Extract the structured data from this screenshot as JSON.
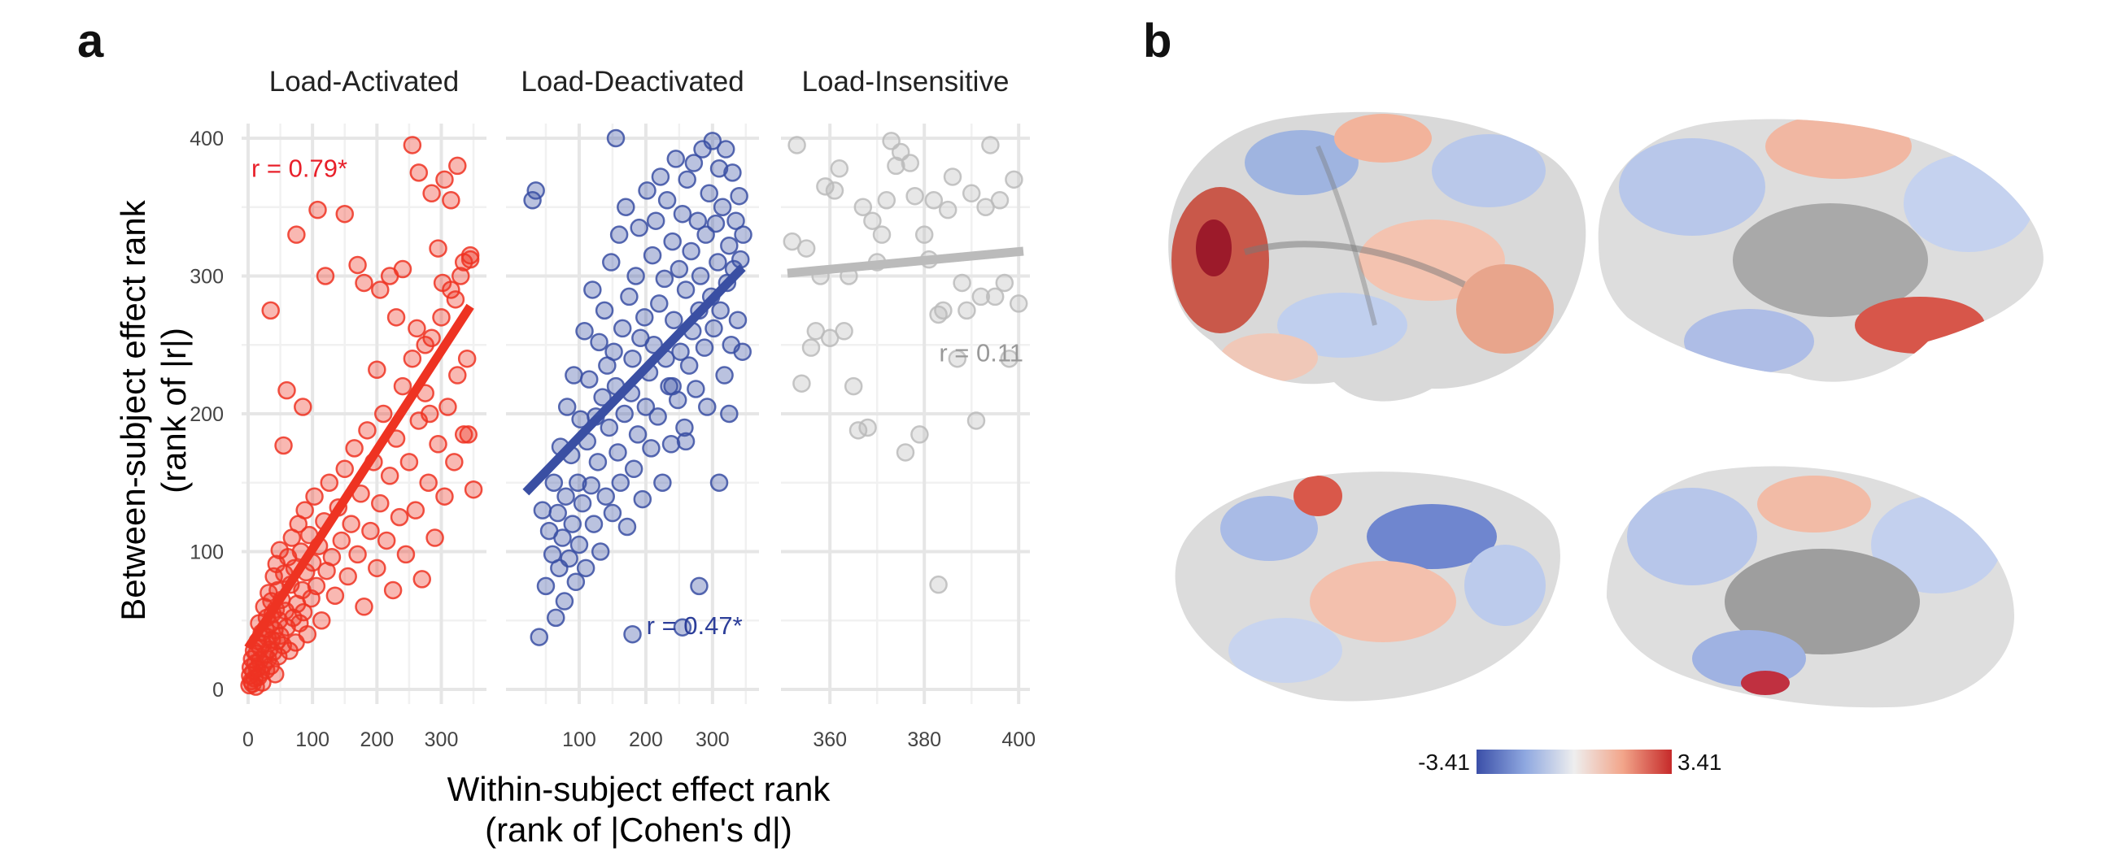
{
  "panel_a_label": "a",
  "panel_b_label": "b",
  "colors": {
    "activated": "#ee3322",
    "deactivated": "#3a4fa3",
    "insensitive": "#bbbbbb",
    "activated_text": "#e8202a",
    "deactivated_text": "#2c3e99",
    "insensitive_text": "#999999"
  },
  "chart_data": [
    {
      "type": "scatter",
      "title": "Load-Activated",
      "xlabel": "Within-subject effect rank\n(rank of |Cohen's d|)",
      "ylabel": "Between-subject effect rank\n(rank of |r|)",
      "xlim": [
        0,
        360
      ],
      "ylim": [
        0,
        400
      ],
      "xticks": [
        0,
        100,
        200,
        300
      ],
      "yticks": [
        0,
        100,
        200,
        300,
        400
      ],
      "annotation": "r = 0.79*",
      "fit": {
        "x": [
          0,
          345
        ],
        "y": [
          30,
          278
        ]
      },
      "points": [
        [
          2,
          3
        ],
        [
          3,
          10
        ],
        [
          4,
          16
        ],
        [
          5,
          6
        ],
        [
          6,
          22
        ],
        [
          7,
          4
        ],
        [
          8,
          13
        ],
        [
          9,
          28
        ],
        [
          10,
          8
        ],
        [
          11,
          19
        ],
        [
          12,
          2
        ],
        [
          13,
          26
        ],
        [
          14,
          15
        ],
        [
          15,
          35
        ],
        [
          16,
          9
        ],
        [
          17,
          48
        ],
        [
          18,
          21
        ],
        [
          19,
          30
        ],
        [
          20,
          12
        ],
        [
          21,
          41
        ],
        [
          22,
          5
        ],
        [
          23,
          33
        ],
        [
          24,
          18
        ],
        [
          25,
          60
        ],
        [
          26,
          25
        ],
        [
          27,
          44
        ],
        [
          28,
          14
        ],
        [
          29,
          52
        ],
        [
          30,
          38
        ],
        [
          31,
          22
        ],
        [
          32,
          70
        ],
        [
          33,
          29
        ],
        [
          34,
          47
        ],
        [
          35,
          17
        ],
        [
          36,
          64
        ],
        [
          37,
          36
        ],
        [
          38,
          55
        ],
        [
          39,
          27
        ],
        [
          40,
          82
        ],
        [
          41,
          43
        ],
        [
          42,
          11
        ],
        [
          43,
          58
        ],
        [
          44,
          91
        ],
        [
          45,
          35
        ],
        [
          46,
          72
        ],
        [
          47,
          24
        ],
        [
          48,
          50
        ],
        [
          49,
          101
        ],
        [
          50,
          39
        ],
        [
          52,
          65
        ],
        [
          54,
          32
        ],
        [
          56,
          84
        ],
        [
          58,
          57
        ],
        [
          60,
          45
        ],
        [
          62,
          96
        ],
        [
          64,
          28
        ],
        [
          66,
          76
        ],
        [
          68,
          110
        ],
        [
          70,
          52
        ],
        [
          72,
          88
        ],
        [
          74,
          34
        ],
        [
          76,
          62
        ],
        [
          78,
          120
        ],
        [
          80,
          48
        ],
        [
          82,
          100
        ],
        [
          84,
          72
        ],
        [
          86,
          56
        ],
        [
          88,
          130
        ],
        [
          90,
          85
        ],
        [
          92,
          40
        ],
        [
          95,
          112
        ],
        [
          98,
          66
        ],
        [
          100,
          92
        ],
        [
          103,
          140
        ],
        [
          106,
          75
        ],
        [
          110,
          104
        ],
        [
          114,
          50
        ],
        [
          118,
          122
        ],
        [
          122,
          86
        ],
        [
          126,
          150
        ],
        [
          130,
          96
        ],
        [
          135,
          68
        ],
        [
          140,
          132
        ],
        [
          145,
          108
        ],
        [
          150,
          160
        ],
        [
          155,
          82
        ],
        [
          160,
          120
        ],
        [
          165,
          175
        ],
        [
          170,
          98
        ],
        [
          175,
          142
        ],
        [
          180,
          60
        ],
        [
          185,
          188
        ],
        [
          190,
          115
        ],
        [
          195,
          165
        ],
        [
          200,
          88
        ],
        [
          205,
          135
        ],
        [
          210,
          200
        ],
        [
          215,
          108
        ],
        [
          220,
          155
        ],
        [
          225,
          72
        ],
        [
          230,
          182
        ],
        [
          235,
          125
        ],
        [
          240,
          220
        ],
        [
          245,
          98
        ],
        [
          250,
          165
        ],
        [
          255,
          240
        ],
        [
          260,
          130
        ],
        [
          265,
          195
        ],
        [
          270,
          80
        ],
        [
          275,
          215
        ],
        [
          280,
          150
        ],
        [
          285,
          255
        ],
        [
          290,
          110
        ],
        [
          295,
          178
        ],
        [
          300,
          270
        ],
        [
          305,
          140
        ],
        [
          310,
          205
        ],
        [
          315,
          290
        ],
        [
          320,
          165
        ],
        [
          325,
          228
        ],
        [
          330,
          300
        ],
        [
          335,
          185
        ],
        [
          340,
          240
        ],
        [
          345,
          315
        ],
        [
          350,
          145
        ],
        [
          35,
          275
        ],
        [
          60,
          217
        ],
        [
          55,
          177
        ],
        [
          85,
          205
        ],
        [
          75,
          330
        ],
        [
          108,
          348
        ],
        [
          120,
          300
        ],
        [
          150,
          345
        ],
        [
          170,
          308
        ],
        [
          180,
          295
        ],
        [
          205,
          290
        ],
        [
          220,
          300
        ],
        [
          240,
          305
        ],
        [
          255,
          395
        ],
        [
          265,
          375
        ],
        [
          275,
          250
        ],
        [
          285,
          360
        ],
        [
          295,
          320
        ],
        [
          305,
          370
        ],
        [
          315,
          355
        ],
        [
          325,
          380
        ],
        [
          335,
          310
        ],
        [
          345,
          312
        ],
        [
          200,
          232
        ],
        [
          230,
          270
        ],
        [
          262,
          262
        ],
        [
          282,
          200
        ],
        [
          302,
          295
        ],
        [
          322,
          283
        ],
        [
          342,
          185
        ]
      ]
    },
    {
      "type": "scatter",
      "title": "Load-Deactivated",
      "xlim": [
        0,
        360
      ],
      "ylim": [
        0,
        400
      ],
      "xticks": [
        100,
        200,
        300
      ],
      "annotation": "r = 0.47*",
      "fit": {
        "x": [
          20,
          345
        ],
        "y": [
          143,
          306
        ]
      },
      "points": [
        [
          40,
          38
        ],
        [
          45,
          130
        ],
        [
          50,
          75
        ],
        [
          55,
          115
        ],
        [
          60,
          98
        ],
        [
          62,
          150
        ],
        [
          65,
          52
        ],
        [
          68,
          128
        ],
        [
          70,
          88
        ],
        [
          72,
          176
        ],
        [
          75,
          110
        ],
        [
          78,
          64
        ],
        [
          80,
          140
        ],
        [
          82,
          205
        ],
        [
          85,
          95
        ],
        [
          88,
          170
        ],
        [
          90,
          120
        ],
        [
          92,
          228
        ],
        [
          95,
          78
        ],
        [
          98,
          150
        ],
        [
          100,
          105
        ],
        [
          102,
          196
        ],
        [
          105,
          135
        ],
        [
          108,
          260
        ],
        [
          110,
          88
        ],
        [
          112,
          180
        ],
        [
          115,
          225
        ],
        [
          118,
          148
        ],
        [
          120,
          290
        ],
        [
          122,
          120
        ],
        [
          125,
          198
        ],
        [
          128,
          165
        ],
        [
          130,
          252
        ],
        [
          132,
          100
        ],
        [
          135,
          212
        ],
        [
          138,
          275
        ],
        [
          140,
          140
        ],
        [
          142,
          235
        ],
        [
          145,
          190
        ],
        [
          148,
          310
        ],
        [
          150,
          128
        ],
        [
          152,
          245
        ],
        [
          155,
          220
        ],
        [
          158,
          172
        ],
        [
          160,
          330
        ],
        [
          162,
          150
        ],
        [
          165,
          262
        ],
        [
          168,
          200
        ],
        [
          170,
          350
        ],
        [
          172,
          118
        ],
        [
          175,
          285
        ],
        [
          178,
          215
        ],
        [
          180,
          240
        ],
        [
          182,
          160
        ],
        [
          185,
          300
        ],
        [
          188,
          185
        ],
        [
          190,
          335
        ],
        [
          192,
          255
        ],
        [
          195,
          138
        ],
        [
          198,
          270
        ],
        [
          200,
          205
        ],
        [
          202,
          362
        ],
        [
          205,
          230
        ],
        [
          208,
          175
        ],
        [
          210,
          315
        ],
        [
          212,
          250
        ],
        [
          215,
          340
        ],
        [
          218,
          198
        ],
        [
          220,
          280
        ],
        [
          222,
          372
        ],
        [
          225,
          150
        ],
        [
          228,
          298
        ],
        [
          230,
          240
        ],
        [
          232,
          355
        ],
        [
          235,
          220
        ],
        [
          238,
          178
        ],
        [
          240,
          325
        ],
        [
          242,
          268
        ],
        [
          245,
          385
        ],
        [
          248,
          210
        ],
        [
          250,
          305
        ],
        [
          252,
          245
        ],
        [
          255,
          345
        ],
        [
          258,
          190
        ],
        [
          260,
          290
        ],
        [
          262,
          370
        ],
        [
          265,
          235
        ],
        [
          268,
          318
        ],
        [
          270,
          260
        ],
        [
          272,
          382
        ],
        [
          275,
          218
        ],
        [
          278,
          340
        ],
        [
          280,
          275
        ],
        [
          282,
          300
        ],
        [
          285,
          392
        ],
        [
          288,
          248
        ],
        [
          290,
          330
        ],
        [
          292,
          205
        ],
        [
          295,
          360
        ],
        [
          298,
          285
        ],
        [
          300,
          398
        ],
        [
          302,
          262
        ],
        [
          305,
          338
        ],
        [
          308,
          310
        ],
        [
          310,
          378
        ],
        [
          312,
          275
        ],
        [
          315,
          350
        ],
        [
          318,
          228
        ],
        [
          320,
          392
        ],
        [
          322,
          295
        ],
        [
          325,
          322
        ],
        [
          328,
          250
        ],
        [
          330,
          375
        ],
        [
          332,
          305
        ],
        [
          335,
          340
        ],
        [
          338,
          268
        ],
        [
          340,
          358
        ],
        [
          342,
          312
        ],
        [
          345,
          245
        ],
        [
          346,
          330
        ],
        [
          30,
          355
        ],
        [
          35,
          362
        ],
        [
          155,
          400
        ],
        [
          180,
          40
        ],
        [
          255,
          45
        ],
        [
          280,
          75
        ],
        [
          310,
          150
        ],
        [
          325,
          200
        ],
        [
          240,
          220
        ],
        [
          260,
          180
        ]
      ]
    },
    {
      "type": "scatter",
      "title": "Load-Insensitive",
      "xlim": [
        351,
        401
      ],
      "ylim": [
        0,
        400
      ],
      "xticks": [
        360,
        380,
        400
      ],
      "annotation": "r = 0.11",
      "fit": {
        "x": [
          351,
          401
        ],
        "y": [
          302,
          318
        ]
      },
      "points": [
        [
          352,
          325
        ],
        [
          353,
          395
        ],
        [
          354,
          222
        ],
        [
          355,
          320
        ],
        [
          356,
          248
        ],
        [
          357,
          260
        ],
        [
          358,
          300
        ],
        [
          359,
          365
        ],
        [
          360,
          255
        ],
        [
          361,
          362
        ],
        [
          362,
          378
        ],
        [
          363,
          260
        ],
        [
          364,
          300
        ],
        [
          365,
          220
        ],
        [
          366,
          188
        ],
        [
          367,
          350
        ],
        [
          368,
          190
        ],
        [
          369,
          340
        ],
        [
          370,
          310
        ],
        [
          371,
          330
        ],
        [
          372,
          355
        ],
        [
          373,
          398
        ],
        [
          374,
          380
        ],
        [
          375,
          390
        ],
        [
          376,
          172
        ],
        [
          377,
          382
        ],
        [
          378,
          358
        ],
        [
          379,
          185
        ],
        [
          380,
          330
        ],
        [
          381,
          312
        ],
        [
          382,
          355
        ],
        [
          383,
          272
        ],
        [
          384,
          275
        ],
        [
          385,
          348
        ],
        [
          386,
          372
        ],
        [
          387,
          240
        ],
        [
          388,
          295
        ],
        [
          389,
          275
        ],
        [
          390,
          360
        ],
        [
          391,
          195
        ],
        [
          392,
          285
        ],
        [
          393,
          350
        ],
        [
          394,
          395
        ],
        [
          395,
          285
        ],
        [
          396,
          355
        ],
        [
          397,
          295
        ],
        [
          398,
          240
        ],
        [
          399,
          370
        ],
        [
          400,
          280
        ],
        [
          383,
          76
        ]
      ]
    }
  ],
  "colorbar": {
    "min_label": "-3.41",
    "max_label": "3.41"
  }
}
